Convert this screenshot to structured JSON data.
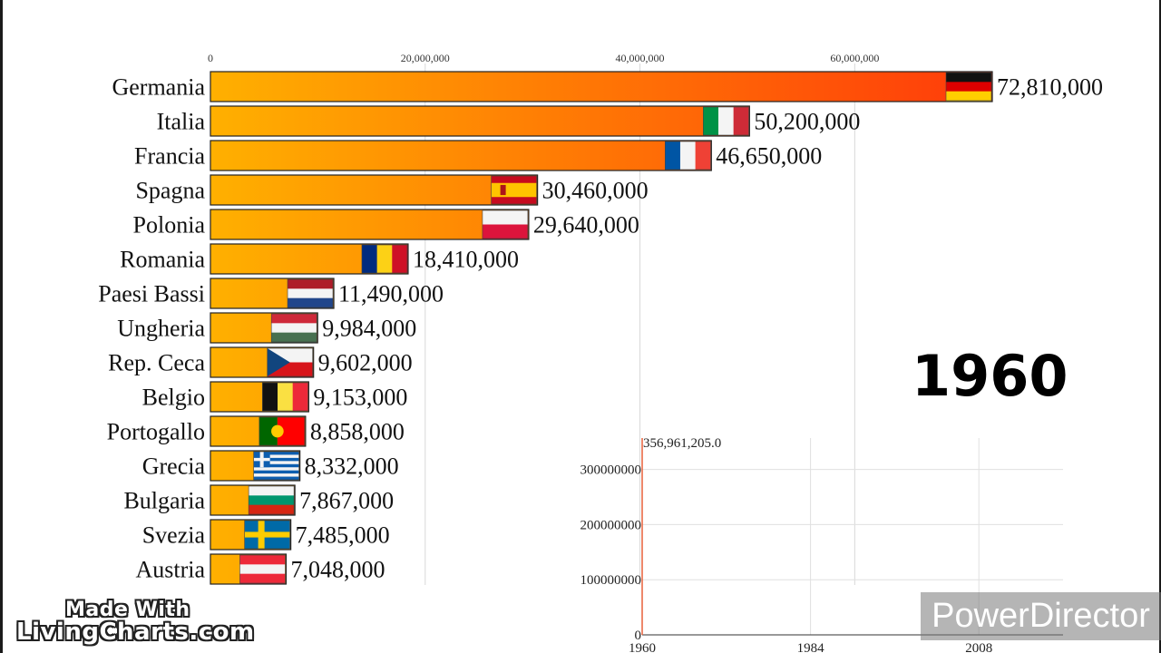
{
  "chart_data": [
    {
      "type": "bar",
      "orientation": "horizontal",
      "categories": [
        "Germania",
        "Italia",
        "Francia",
        "Spagna",
        "Polonia",
        "Romania",
        "Paesi Bassi",
        "Ungheria",
        "Rep. Ceca",
        "Belgio",
        "Portogallo",
        "Grecia",
        "Bulgaria",
        "Svezia",
        "Austria"
      ],
      "values": [
        72810000,
        50200000,
        46650000,
        30460000,
        29640000,
        18410000,
        11490000,
        9984000,
        9602000,
        9153000,
        8858000,
        8332000,
        7867000,
        7485000,
        7048000
      ],
      "value_labels": [
        "72,810,000",
        "50,200,000",
        "46,650,000",
        "30,460,000",
        "29,640,000",
        "18,410,000",
        "11,490,000",
        "9,984,000",
        "9,602,000",
        "9,153,000",
        "8,858,000",
        "8,332,000",
        "7,867,000",
        "7,485,000",
        "7,048,000"
      ],
      "flags": [
        "germany",
        "italy",
        "france",
        "spain",
        "poland",
        "romania",
        "netherlands",
        "hungary",
        "czech",
        "belgium",
        "portugal",
        "greece",
        "bulgaria",
        "sweden",
        "austria"
      ],
      "xticks": [
        0,
        20000000,
        40000000,
        60000000
      ],
      "xtick_labels": [
        "0",
        "20,000,000",
        "40,000,000",
        "60,000,000"
      ],
      "xlim": [
        0,
        72810000
      ],
      "colors": {
        "bar_start": "#ffb000",
        "bar_end": "#ff3a0a",
        "bar_stroke": "#222222"
      },
      "year_label": "1960"
    },
    {
      "type": "line",
      "x": [
        1960
      ],
      "y": [
        356961205.0
      ],
      "point_label": "356,961,205.0",
      "xticks": [
        1960,
        1984,
        2008
      ],
      "yticks": [
        0,
        100000000,
        200000000,
        300000000
      ],
      "ytick_labels": [
        "0",
        "100000000",
        "200000000",
        "300000000"
      ],
      "xlim": [
        1960,
        2020
      ],
      "ylim": [
        0,
        356961205
      ],
      "grid": true,
      "line_color": "#e8603a"
    }
  ],
  "watermark": {
    "line1": "Made With",
    "line2": "LivingCharts.com"
  },
  "badge": "PowerDirector"
}
